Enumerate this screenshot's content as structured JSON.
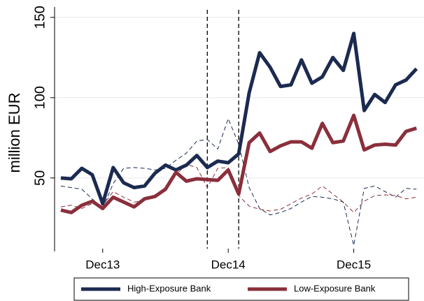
{
  "chart_data": {
    "type": "line",
    "y_label": "million EUR",
    "categories": [
      null,
      null,
      null,
      null,
      "Dec13",
      null,
      null,
      null,
      null,
      null,
      null,
      null,
      null,
      null,
      null,
      null,
      "Dec14",
      null,
      null,
      null,
      null,
      null,
      null,
      null,
      null,
      null,
      null,
      null,
      "Dec15",
      null,
      null,
      null,
      null,
      null,
      null
    ],
    "ylim": [
      6,
      153
    ],
    "yticks": [
      50,
      100,
      150
    ],
    "grid": true,
    "vlines": [
      14,
      17
    ],
    "series": [
      {
        "name": "High-Exposure Bank",
        "color": "#1b2a50",
        "style": "solid",
        "values": [
          50,
          49.5,
          56,
          52,
          34,
          56.5,
          47,
          44,
          45,
          53,
          58,
          55,
          58,
          64,
          56.5,
          60.5,
          59.5,
          65,
          103,
          128,
          119,
          107,
          108,
          123.5,
          109,
          113,
          125,
          117,
          140,
          92,
          102,
          97,
          108,
          111,
          118
        ]
      },
      {
        "name": "Low-Exposure Bank",
        "color": "#8a2f3b",
        "style": "solid",
        "values": [
          30,
          28.5,
          33,
          35.5,
          31,
          38,
          35,
          32,
          37,
          38.5,
          43,
          53.5,
          48,
          49.5,
          49,
          48.5,
          55,
          40,
          72,
          78,
          66.5,
          70,
          72.5,
          72.5,
          68.5,
          84,
          72,
          73,
          89,
          67.5,
          70.5,
          71,
          70.5,
          79,
          81
        ]
      },
      {
        "color": "#1b2a50",
        "style": "dashed",
        "values": [
          45,
          44,
          43,
          37,
          31,
          46.5,
          56,
          56.5,
          56,
          55,
          56,
          61,
          65.5,
          73,
          74,
          68,
          87,
          71,
          44,
          31,
          27,
          28.5,
          31,
          35,
          38.5,
          38,
          37,
          35,
          8,
          43.5,
          45,
          41.5,
          38,
          43.5,
          43
        ]
      },
      {
        "color": "#8a2f3b",
        "style": "dashed",
        "values": [
          32,
          33,
          31,
          34,
          33,
          41.5,
          38,
          35,
          36,
          39.5,
          44,
          52,
          58.5,
          56.5,
          44,
          56,
          56.5,
          39,
          32.5,
          30.5,
          29.5,
          30.5,
          34,
          37.5,
          40,
          45,
          40,
          35,
          28.5,
          35.5,
          39,
          39.5,
          39,
          37,
          38
        ]
      }
    ]
  }
}
